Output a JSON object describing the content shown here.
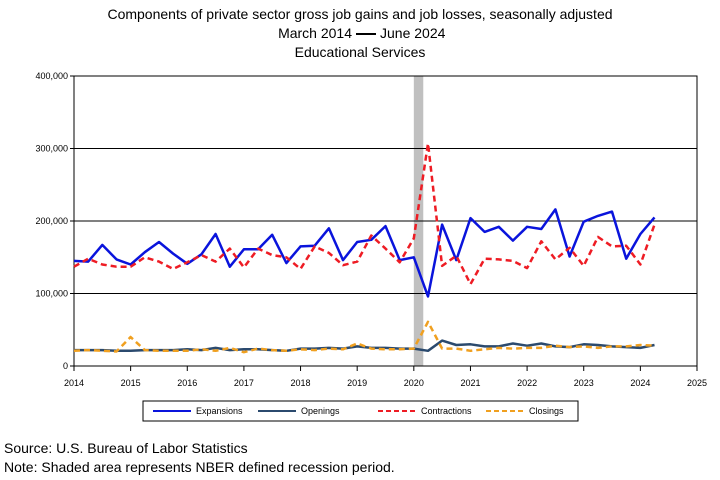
{
  "chart_data": {
    "type": "line",
    "title": "Components of private sector gross job gains and job losses, seasonally adjusted",
    "subtitle_left": "March 2014",
    "subtitle_right": "June 2024",
    "subtitle2": "Educational Services",
    "xlim": [
      2014,
      2025
    ],
    "ylim": [
      0,
      400000
    ],
    "x_ticks": [
      "2014",
      "2015",
      "2016",
      "2017",
      "2018",
      "2019",
      "2020",
      "2021",
      "2022",
      "2023",
      "2024",
      "2025"
    ],
    "y_ticks": [
      "0",
      "100,000",
      "200,000",
      "300,000",
      "400,000"
    ],
    "recession": {
      "start": 2020.0,
      "end": 2020.167
    },
    "x": [
      2014.0,
      2014.25,
      2014.5,
      2014.75,
      2015.0,
      2015.25,
      2015.5,
      2015.75,
      2016.0,
      2016.25,
      2016.5,
      2016.75,
      2017.0,
      2017.25,
      2017.5,
      2017.75,
      2018.0,
      2018.25,
      2018.5,
      2018.75,
      2019.0,
      2019.25,
      2019.5,
      2019.75,
      2020.0,
      2020.25,
      2020.5,
      2020.75,
      2021.0,
      2021.25,
      2021.5,
      2021.75,
      2022.0,
      2022.25,
      2022.5,
      2022.75,
      2023.0,
      2023.25,
      2023.5,
      2023.75,
      2024.0,
      2024.25
    ],
    "series": [
      {
        "name": "Expansions",
        "color": "#0a14dc",
        "dash": "solid",
        "width": 2.5,
        "values": [
          145000,
          144000,
          167000,
          147000,
          140000,
          157000,
          171000,
          155000,
          141000,
          154000,
          182000,
          137000,
          161000,
          161000,
          181000,
          142000,
          165000,
          166000,
          190000,
          146000,
          171000,
          174000,
          193000,
          146000,
          150000,
          96000,
          195000,
          146000,
          204000,
          185000,
          192000,
          173000,
          192000,
          189000,
          216000,
          151000,
          199000,
          207000,
          213000,
          148000,
          182000,
          205000
        ]
      },
      {
        "name": "Openings",
        "color": "#2b4a6e",
        "dash": "solid",
        "width": 2.5,
        "values": [
          22000,
          22000,
          22000,
          21000,
          21000,
          22000,
          22000,
          22000,
          23000,
          22000,
          25000,
          22000,
          23000,
          23000,
          22000,
          21000,
          24000,
          24000,
          25000,
          24000,
          27000,
          25000,
          25000,
          24000,
          24000,
          21000,
          35000,
          29000,
          30000,
          27000,
          27000,
          31000,
          28000,
          31000,
          27000,
          26000,
          30000,
          29000,
          27000,
          26000,
          25000,
          29000
        ]
      },
      {
        "name": "Contractions",
        "color": "#ee1c24",
        "dash": "6,4",
        "width": 2.5,
        "values": [
          137000,
          148000,
          140000,
          137000,
          137000,
          150000,
          144000,
          134000,
          143000,
          153000,
          144000,
          162000,
          136000,
          162000,
          153000,
          150000,
          134000,
          165000,
          156000,
          139000,
          144000,
          180000,
          162000,
          143000,
          176000,
          307000,
          138000,
          152000,
          113000,
          148000,
          147000,
          145000,
          135000,
          172000,
          147000,
          163000,
          138000,
          178000,
          165000,
          166000,
          140000,
          195000
        ]
      },
      {
        "name": "Closings",
        "color": "#f0a020",
        "dash": "6,4",
        "width": 2.5,
        "values": [
          21000,
          22000,
          21000,
          20000,
          40000,
          22000,
          21000,
          21000,
          21000,
          23000,
          21000,
          25000,
          19000,
          24000,
          22000,
          21000,
          23000,
          22000,
          24000,
          23000,
          31000,
          24000,
          23000,
          23000,
          24000,
          61000,
          24000,
          24000,
          21000,
          23000,
          25000,
          24000,
          25000,
          25000,
          28000,
          26000,
          27000,
          25000,
          27000,
          27000,
          29000,
          28000
        ]
      }
    ],
    "legend_placement": "bottom"
  },
  "footer": {
    "source": "Source: U.S. Bureau of Labor Statistics",
    "note": "Note: Shaded area represents NBER defined recession period."
  }
}
